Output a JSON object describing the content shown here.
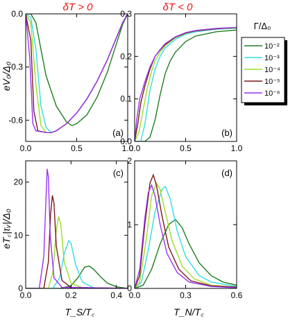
{
  "header": {
    "left": "δT > 0",
    "right": "δT < 0"
  },
  "legend": {
    "title": "Γ/Δ₀",
    "entries": [
      {
        "label": "10⁻²",
        "color": "#1e7d1e"
      },
      {
        "label": "10⁻³",
        "color": "#33dde8"
      },
      {
        "label": "10⁻⁴",
        "color": "#99e022"
      },
      {
        "label": "10⁻⁵",
        "color": "#7a1a1a"
      },
      {
        "label": "10⁻⁶",
        "color": "#9a33ee"
      }
    ]
  },
  "chart_data": [
    {
      "panel": "(a)",
      "type": "line",
      "ylabel": "eV₀/Δ₀",
      "xlim": [
        0,
        1.0
      ],
      "ylim": [
        -0.72,
        0
      ],
      "xticks": [
        "0.0",
        "0.5",
        "1.0"
      ],
      "yticks": [
        "0.0",
        "-0.3",
        "-0.6"
      ],
      "xtick_values": [
        0,
        0.5,
        1.0
      ],
      "ytick_values": [
        0,
        -0.3,
        -0.6
      ],
      "series": [
        {
          "x": [
            0,
            0.05,
            0.1,
            0.15,
            0.2,
            0.3,
            0.4,
            0.45,
            0.5,
            0.6,
            0.7,
            0.8,
            0.9,
            0.95,
            1.0
          ],
          "y": [
            0,
            0,
            -0.05,
            -0.2,
            -0.35,
            -0.52,
            -0.61,
            -0.63,
            -0.62,
            -0.57,
            -0.47,
            -0.33,
            -0.15,
            -0.06,
            0
          ]
        },
        {
          "x": [
            0,
            0.05,
            0.1,
            0.15,
            0.2,
            0.25,
            0.3,
            0.4,
            0.5,
            0.6,
            0.7,
            0.8,
            0.9,
            0.95,
            1.0
          ],
          "y": [
            0,
            -0.02,
            -0.2,
            -0.52,
            -0.64,
            -0.67,
            -0.66,
            -0.62,
            -0.56,
            -0.48,
            -0.38,
            -0.26,
            -0.12,
            -0.05,
            0
          ]
        },
        {
          "x": [
            0,
            0.05,
            0.1,
            0.15,
            0.2,
            0.25,
            0.3,
            0.4,
            0.5,
            0.6,
            0.7,
            0.8,
            0.9,
            0.95,
            1.0
          ],
          "y": [
            0,
            -0.05,
            -0.4,
            -0.63,
            -0.67,
            -0.67,
            -0.66,
            -0.62,
            -0.56,
            -0.48,
            -0.38,
            -0.26,
            -0.12,
            -0.05,
            0
          ]
        },
        {
          "x": [
            0,
            0.05,
            0.08,
            0.12,
            0.2,
            0.25,
            0.3,
            0.4,
            0.5,
            0.6,
            0.7,
            0.8,
            0.9,
            0.95,
            1.0
          ],
          "y": [
            0,
            -0.15,
            -0.55,
            -0.66,
            -0.67,
            -0.67,
            -0.66,
            -0.62,
            -0.56,
            -0.48,
            -0.38,
            -0.26,
            -0.12,
            -0.05,
            0
          ]
        },
        {
          "x": [
            0,
            0.04,
            0.07,
            0.1,
            0.2,
            0.25,
            0.3,
            0.4,
            0.5,
            0.6,
            0.7,
            0.8,
            0.9,
            0.95,
            1.0
          ],
          "y": [
            0,
            -0.25,
            -0.62,
            -0.66,
            -0.67,
            -0.67,
            -0.66,
            -0.62,
            -0.56,
            -0.48,
            -0.38,
            -0.26,
            -0.12,
            -0.05,
            0
          ]
        }
      ]
    },
    {
      "panel": "(b)",
      "type": "line",
      "ylabel": "",
      "xlim": [
        0,
        1.0
      ],
      "ylim": [
        0,
        0.3
      ],
      "xticks": [
        "0.0",
        "0.5",
        "1.0"
      ],
      "yticks": [
        "0.0",
        "0.1",
        "0.2",
        "0.3"
      ],
      "xtick_values": [
        0,
        0.5,
        1.0
      ],
      "ytick_values": [
        0,
        0.1,
        0.2,
        0.3
      ],
      "series": [
        {
          "x": [
            0,
            0.1,
            0.15,
            0.2,
            0.25,
            0.3,
            0.35,
            0.4,
            0.5,
            0.6,
            0.8,
            1.0
          ],
          "y": [
            0,
            0,
            0.01,
            0.05,
            0.11,
            0.16,
            0.19,
            0.21,
            0.235,
            0.248,
            0.258,
            0.262
          ]
        },
        {
          "x": [
            0,
            0.06,
            0.1,
            0.15,
            0.2,
            0.25,
            0.3,
            0.4,
            0.5,
            0.6,
            0.8,
            1.0
          ],
          "y": [
            0,
            0,
            0.04,
            0.12,
            0.17,
            0.2,
            0.22,
            0.24,
            0.252,
            0.258,
            0.264,
            0.266
          ]
        },
        {
          "x": [
            0,
            0.04,
            0.08,
            0.12,
            0.16,
            0.2,
            0.25,
            0.3,
            0.4,
            0.5,
            0.6,
            0.8,
            1.0
          ],
          "y": [
            0,
            0.02,
            0.07,
            0.12,
            0.16,
            0.19,
            0.21,
            0.225,
            0.244,
            0.254,
            0.26,
            0.265,
            0.267
          ]
        },
        {
          "x": [
            0,
            0.03,
            0.06,
            0.1,
            0.15,
            0.2,
            0.25,
            0.3,
            0.4,
            0.5,
            0.6,
            0.8,
            1.0
          ],
          "y": [
            0,
            0.04,
            0.09,
            0.13,
            0.17,
            0.2,
            0.215,
            0.228,
            0.245,
            0.255,
            0.26,
            0.265,
            0.268
          ]
        },
        {
          "x": [
            0,
            0.02,
            0.05,
            0.1,
            0.15,
            0.2,
            0.25,
            0.3,
            0.4,
            0.5,
            0.6,
            0.8,
            1.0
          ],
          "y": [
            0,
            0.05,
            0.1,
            0.14,
            0.175,
            0.2,
            0.216,
            0.23,
            0.246,
            0.256,
            0.261,
            0.266,
            0.268
          ]
        }
      ]
    },
    {
      "panel": "(c)",
      "type": "line",
      "ylabel": "eT꜀|τᵥ|/Δ₀",
      "xlabel": "T_S/T꜀",
      "xlim": [
        0,
        0.45
      ],
      "ylim": [
        0,
        24
      ],
      "xticks": [
        "0.0",
        "0.2",
        "0.4"
      ],
      "yticks": [
        "0",
        "10",
        "20"
      ],
      "xtick_values": [
        0,
        0.2,
        0.4
      ],
      "ytick_values": [
        0,
        10,
        20
      ],
      "series": [
        {
          "x": [
            0,
            0.15,
            0.2,
            0.23,
            0.26,
            0.28,
            0.3,
            0.33,
            0.36,
            0.4,
            0.45
          ],
          "y": [
            0,
            0,
            0.5,
            2.0,
            4.0,
            4.2,
            3.6,
            2.2,
            1.0,
            0.3,
            0
          ]
        },
        {
          "x": [
            0,
            0.12,
            0.15,
            0.17,
            0.19,
            0.2,
            0.22,
            0.25,
            0.3,
            0.45
          ],
          "y": [
            0,
            0,
            2.0,
            6.5,
            9.0,
            8.5,
            4.5,
            1.2,
            0.1,
            0
          ]
        },
        {
          "x": [
            0,
            0.1,
            0.12,
            0.135,
            0.145,
            0.155,
            0.17,
            0.2,
            0.25,
            0.45
          ],
          "y": [
            0,
            0,
            3.0,
            11.0,
            13.5,
            12.0,
            5.0,
            1.0,
            0.1,
            0
          ]
        },
        {
          "x": [
            0,
            0.08,
            0.1,
            0.11,
            0.118,
            0.125,
            0.135,
            0.16,
            0.2,
            0.45
          ],
          "y": [
            0,
            0,
            5.0,
            14.0,
            17.5,
            16.0,
            8.0,
            1.5,
            0.2,
            0
          ]
        },
        {
          "x": [
            0,
            0.06,
            0.08,
            0.088,
            0.095,
            0.1,
            0.108,
            0.125,
            0.16,
            0.45
          ],
          "y": [
            0,
            0,
            6.0,
            15.0,
            22.5,
            21.0,
            10.0,
            2.0,
            0.2,
            0
          ]
        }
      ]
    },
    {
      "panel": "(d)",
      "type": "line",
      "ylabel": "",
      "xlabel": "T_N/T꜀",
      "xlim": [
        0,
        0.6
      ],
      "ylim": [
        0,
        2
      ],
      "xticks": [
        "0.0",
        "0.3",
        "0.6"
      ],
      "yticks": [
        "0",
        "1",
        "2"
      ],
      "xtick_values": [
        0,
        0.3,
        0.6
      ],
      "ytick_values": [
        0,
        1,
        2
      ],
      "series": [
        {
          "x": [
            0,
            0.05,
            0.1,
            0.15,
            0.2,
            0.24,
            0.28,
            0.32,
            0.38,
            0.45,
            0.52,
            0.6
          ],
          "y": [
            0,
            0.05,
            0.3,
            0.7,
            1.0,
            1.08,
            0.95,
            0.7,
            0.4,
            0.2,
            0.1,
            0.05
          ]
        },
        {
          "x": [
            0,
            0.04,
            0.08,
            0.12,
            0.16,
            0.18,
            0.21,
            0.25,
            0.3,
            0.38,
            0.45,
            0.6
          ],
          "y": [
            0,
            0.1,
            0.6,
            1.2,
            1.55,
            1.6,
            1.4,
            0.9,
            0.5,
            0.2,
            0.1,
            0.03
          ]
        },
        {
          "x": [
            0,
            0.03,
            0.07,
            0.1,
            0.13,
            0.15,
            0.18,
            0.22,
            0.28,
            0.35,
            0.45,
            0.6
          ],
          "y": [
            0,
            0.1,
            0.8,
            1.45,
            1.65,
            1.55,
            1.2,
            0.75,
            0.35,
            0.15,
            0.05,
            0.02
          ]
        },
        {
          "x": [
            0,
            0.03,
            0.06,
            0.09,
            0.11,
            0.13,
            0.16,
            0.2,
            0.26,
            0.33,
            0.45,
            0.6
          ],
          "y": [
            0,
            0.2,
            1.0,
            1.65,
            1.78,
            1.6,
            1.15,
            0.65,
            0.3,
            0.12,
            0.04,
            0.02
          ]
        },
        {
          "x": [
            0,
            0.03,
            0.06,
            0.08,
            0.1,
            0.12,
            0.15,
            0.19,
            0.25,
            0.32,
            0.45,
            0.6
          ],
          "y": [
            0,
            0.3,
            1.1,
            1.5,
            1.62,
            1.45,
            1.0,
            0.55,
            0.25,
            0.1,
            0.03,
            0.01
          ]
        }
      ]
    }
  ]
}
